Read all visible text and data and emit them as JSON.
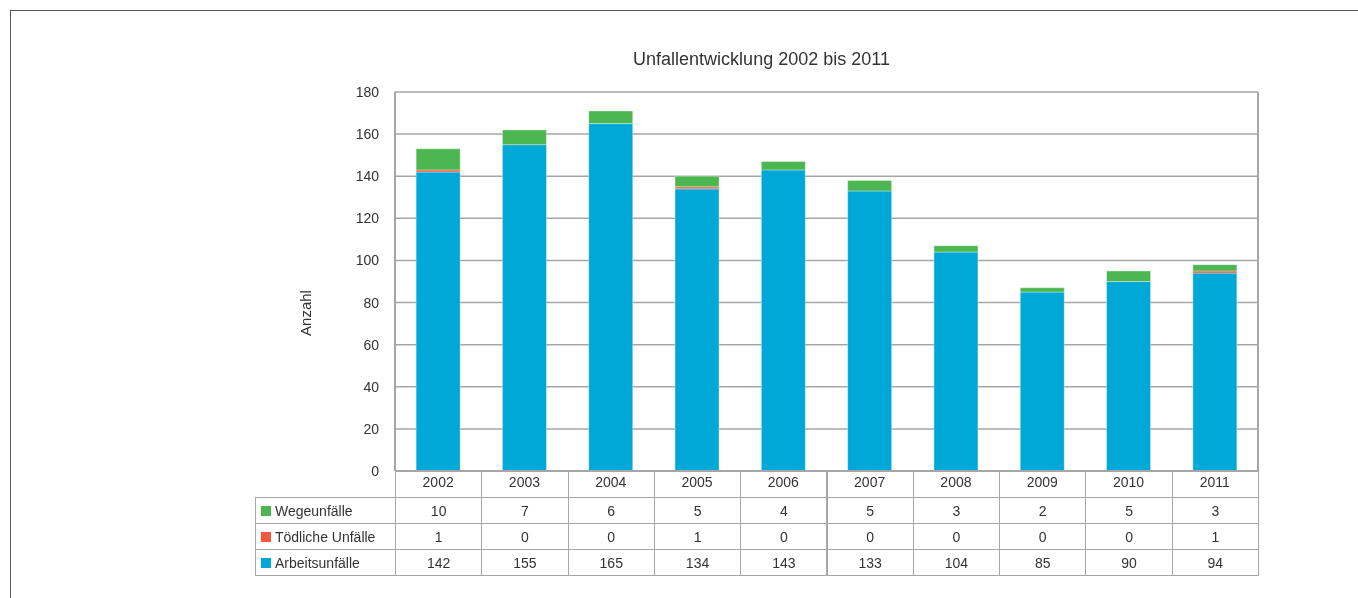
{
  "chart_data": {
    "type": "bar",
    "title": "Unfallentwicklung 2002 bis 2011",
    "ylabel": "Anzahl",
    "categories": [
      "2002",
      "2003",
      "2004",
      "2005",
      "2006",
      "2007",
      "2008",
      "2009",
      "2010",
      "2011"
    ],
    "series": [
      {
        "name": "Arbeitsunfälle",
        "color": "#00a8d8",
        "values": [
          142,
          155,
          165,
          134,
          143,
          133,
          104,
          85,
          90,
          94
        ]
      },
      {
        "name": "Tödliche Unfälle",
        "color": "#f05a3a",
        "values": [
          1,
          0,
          0,
          1,
          0,
          0,
          0,
          0,
          0,
          1
        ]
      },
      {
        "name": "Wegeunfälle",
        "color": "#4cb751",
        "values": [
          10,
          7,
          6,
          5,
          4,
          5,
          3,
          2,
          5,
          3
        ]
      }
    ],
    "stacked": true,
    "ylim": [
      0,
      180
    ],
    "yticks": [
      0,
      20,
      40,
      60,
      80,
      100,
      120,
      140,
      160,
      180
    ],
    "grid": "y",
    "legend": "bottom",
    "data_labels": true
  }
}
